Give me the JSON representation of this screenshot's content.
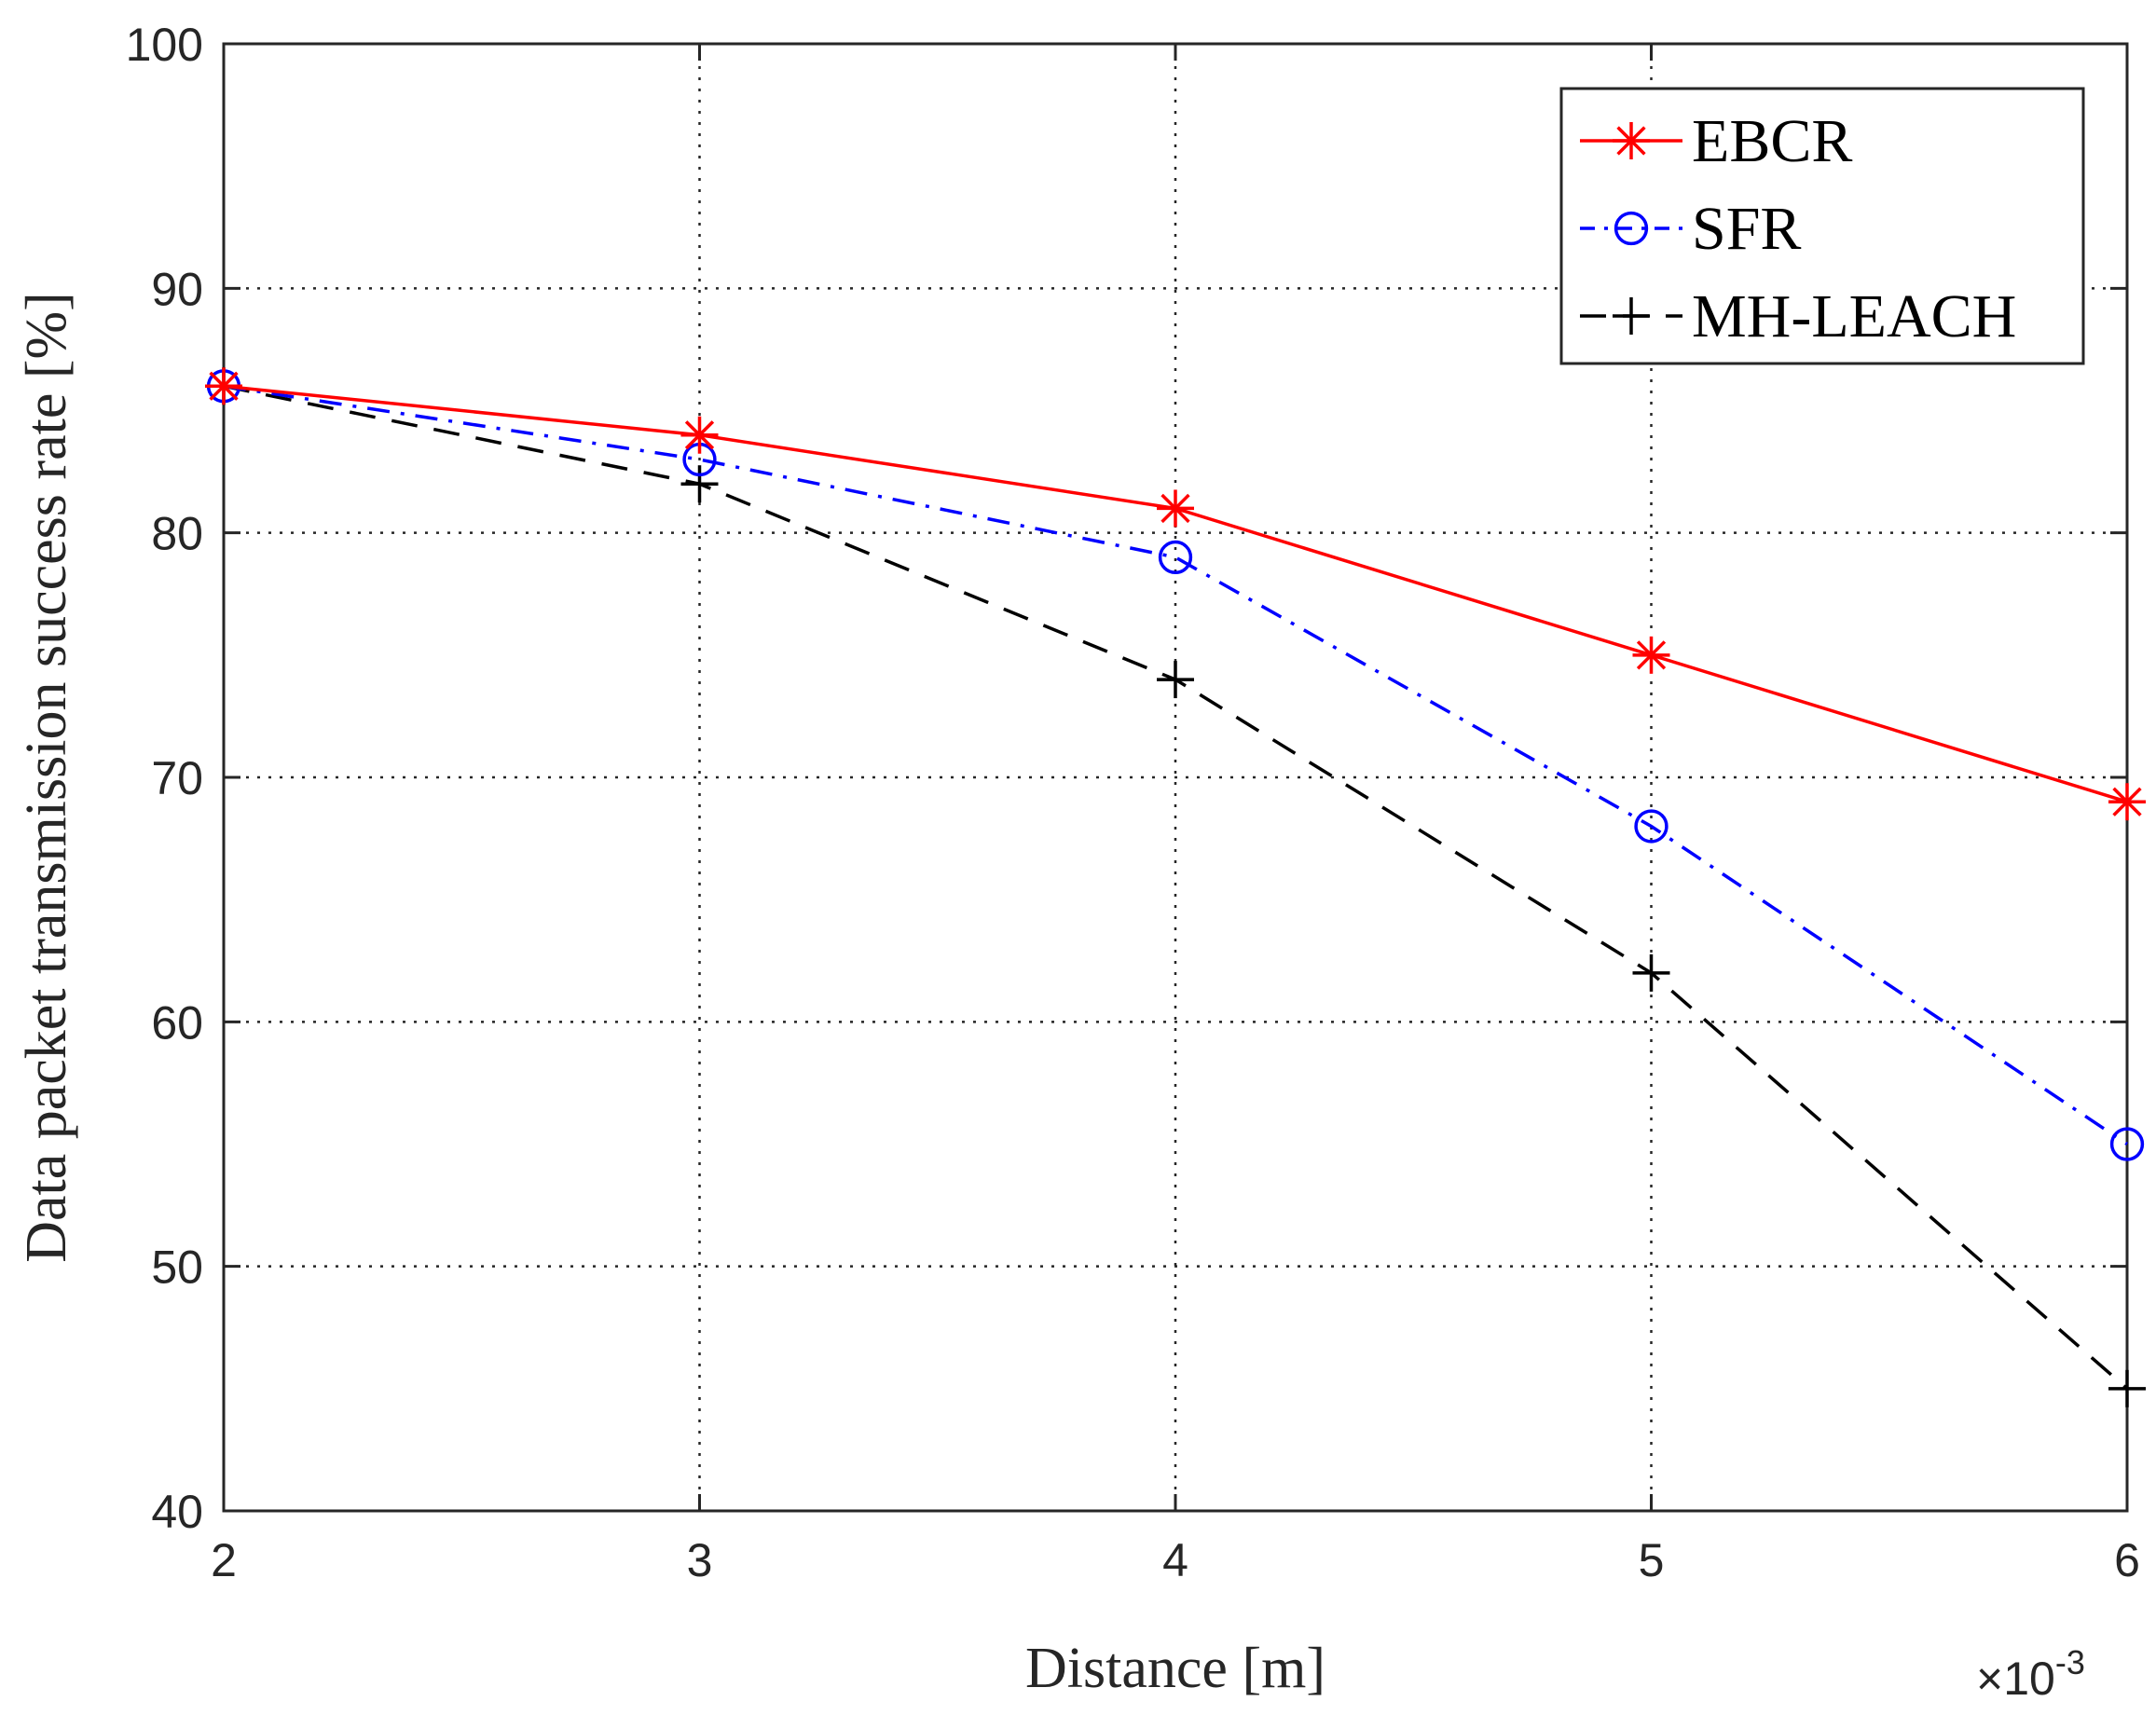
{
  "chart_data": {
    "type": "line",
    "title": "",
    "xlabel": "Distance [m]",
    "ylabel": "Data packet transmission success rate [%]",
    "x_exponent_label": "×10",
    "x_exponent_power": "-3",
    "x": [
      2,
      3,
      4,
      5,
      6
    ],
    "xlim": [
      2,
      6
    ],
    "ylim": [
      40,
      100
    ],
    "xticks": [
      "2",
      "3",
      "4",
      "5",
      "6"
    ],
    "yticks": [
      "40",
      "50",
      "60",
      "70",
      "80",
      "90",
      "100"
    ],
    "grid": true,
    "legend_position": "top-right",
    "series": [
      {
        "name": "EBCR",
        "values": [
          86,
          84,
          81,
          75,
          69
        ],
        "color": "#ff0000",
        "marker": "asterisk",
        "line": "solid"
      },
      {
        "name": "SFR",
        "values": [
          86,
          83,
          79,
          68,
          55
        ],
        "color": "#0000ff",
        "marker": "circle",
        "line": "dashdot"
      },
      {
        "name": "MH-LEACH",
        "values": [
          86,
          82,
          74,
          62,
          45
        ],
        "color": "#000000",
        "marker": "plus",
        "line": "dashed"
      }
    ]
  }
}
